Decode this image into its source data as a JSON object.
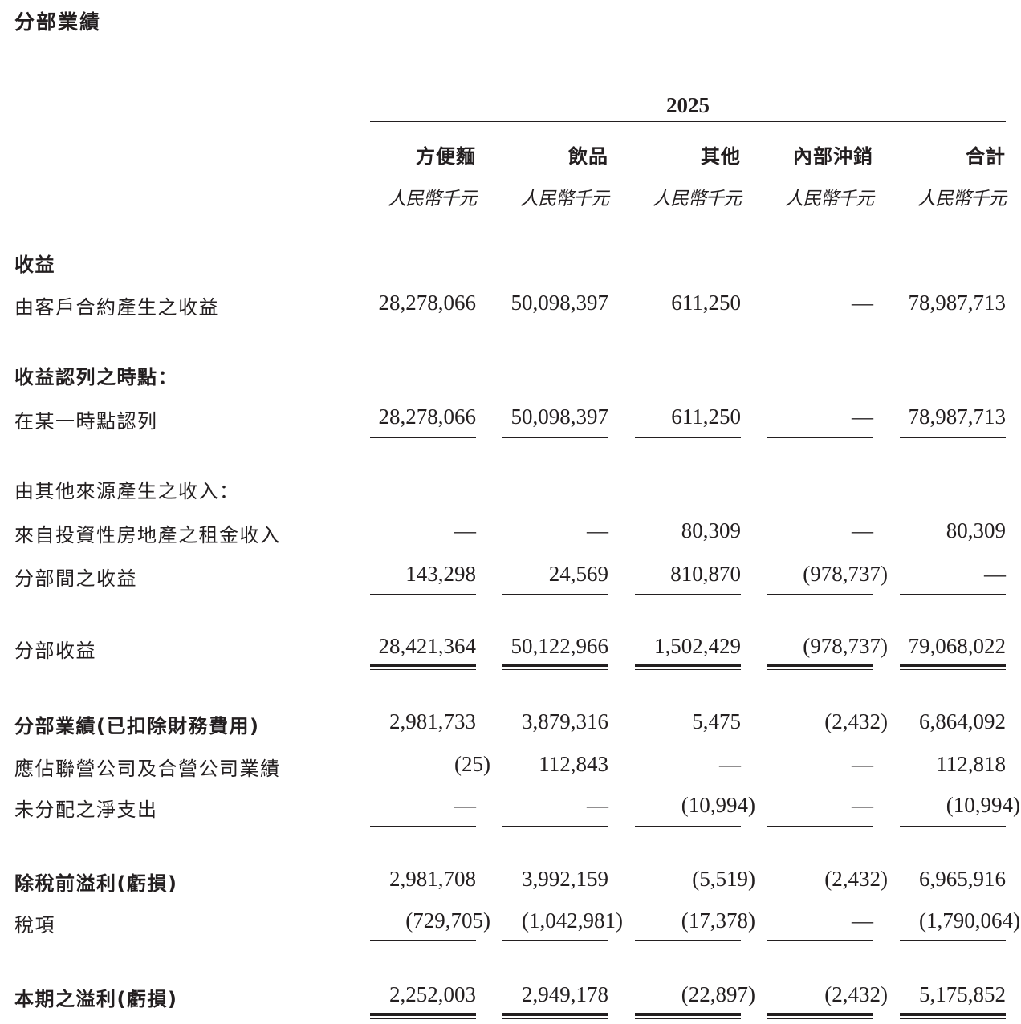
{
  "title": "分部業績",
  "year": "2025",
  "columns": [
    {
      "name": "方便麵",
      "unit": "人民幣千元"
    },
    {
      "name": "飲品",
      "unit": "人民幣千元"
    },
    {
      "name": "其他",
      "unit": "人民幣千元"
    },
    {
      "name": "內部沖銷",
      "unit": "人民幣千元"
    },
    {
      "name": "合計",
      "unit": "人民幣千元"
    }
  ],
  "rows": [
    {
      "label": "收益",
      "bold": true,
      "values": []
    },
    {
      "label": "由客戶合約產生之收益",
      "bold": false,
      "values": [
        "28,278,066",
        "50,098,397",
        "611,250",
        "—",
        "78,987,713"
      ]
    },
    {
      "label": "收益認列之時點：",
      "bold": true,
      "values": []
    },
    {
      "label": "在某一時點認列",
      "bold": false,
      "values": [
        "28,278,066",
        "50,098,397",
        "611,250",
        "—",
        "78,987,713"
      ]
    },
    {
      "label": "由其他來源產生之收入：",
      "bold": false,
      "values": []
    },
    {
      "label": "來自投資性房地產之租金收入",
      "bold": false,
      "values": [
        "—",
        "—",
        "80,309",
        "—",
        "80,309"
      ]
    },
    {
      "label": "分部間之收益",
      "bold": false,
      "values": [
        "143,298",
        "24,569",
        "810,870",
        "(978,737)",
        "—"
      ]
    },
    {
      "label": "分部收益",
      "bold": false,
      "values": [
        "28,421,364",
        "50,122,966",
        "1,502,429",
        "(978,737)",
        "79,068,022"
      ]
    },
    {
      "label": "分部業績(已扣除財務費用)",
      "bold": true,
      "values": [
        "2,981,733",
        "3,879,316",
        "5,475",
        "(2,432)",
        "6,864,092"
      ]
    },
    {
      "label": "應佔聯營公司及合營公司業績",
      "bold": false,
      "values": [
        "(25)",
        "112,843",
        "—",
        "—",
        "112,818"
      ]
    },
    {
      "label": "未分配之淨支出",
      "bold": false,
      "values": [
        "—",
        "—",
        "(10,994)",
        "—",
        "(10,994)"
      ]
    },
    {
      "label": "除稅前溢利(虧損)",
      "bold": true,
      "values": [
        "2,981,708",
        "3,992,159",
        "(5,519)",
        "(2,432)",
        "6,965,916"
      ]
    },
    {
      "label": "稅項",
      "bold": false,
      "values": [
        "(729,705)",
        "(1,042,981)",
        "(17,378)",
        "—",
        "(1,790,064)"
      ]
    },
    {
      "label": "本期之溢利(虧損)",
      "bold": true,
      "values": [
        "2,252,003",
        "2,949,178",
        "(22,897)",
        "(2,432)",
        "5,175,852"
      ]
    }
  ]
}
